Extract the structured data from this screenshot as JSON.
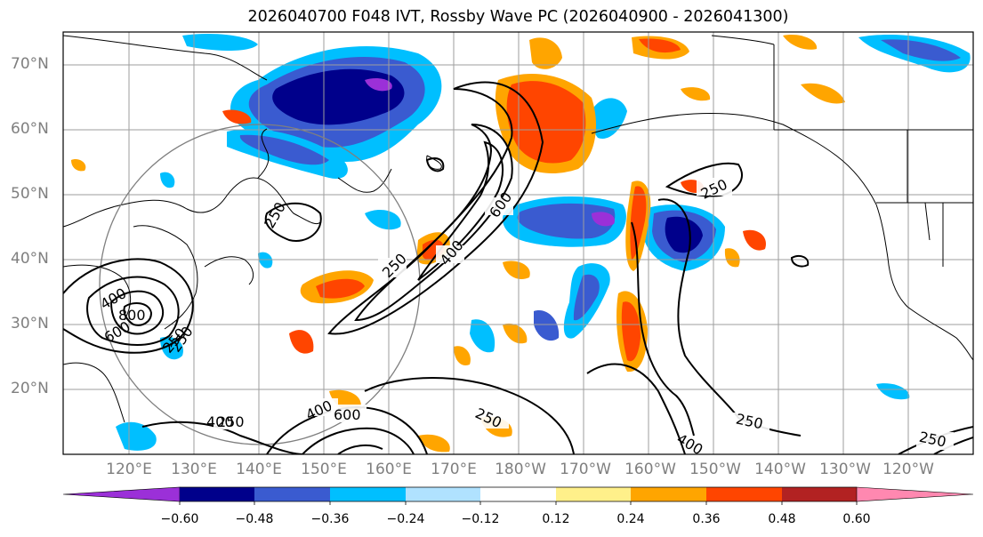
{
  "title": "2026040700 F048 IVT, Rossby Wave PC (2026040900 - 2026041300)",
  "lat_labels": [
    "70°N",
    "60°N",
    "50°N",
    "40°N",
    "30°N",
    "20°N"
  ],
  "lon_labels": [
    "120°E",
    "130°E",
    "140°E",
    "150°E",
    "160°E",
    "170°E",
    "180°W",
    "170°W",
    "160°W",
    "150°W",
    "140°W",
    "130°W",
    "120°W"
  ],
  "colorbar": {
    "colors": [
      "#9b30d8",
      "#00008b",
      "#3a5bd0",
      "#00bfff",
      "#b0e2ff",
      "#ffffff",
      "#fff08a",
      "#ffa500",
      "#ff4500",
      "#b22222",
      "#ff88b0"
    ],
    "tick_labels": [
      "−0.60",
      "−0.48",
      "−0.36",
      "−0.24",
      "−0.12",
      "0.12",
      "0.24",
      "0.36",
      "0.48",
      "0.60"
    ]
  },
  "contour_labels": [
    "250",
    "400",
    "600",
    "800",
    "250",
    "250",
    "250",
    "400",
    "600",
    "250",
    "400",
    "250",
    "250",
    "250",
    "400",
    "400",
    "600",
    "250"
  ]
}
